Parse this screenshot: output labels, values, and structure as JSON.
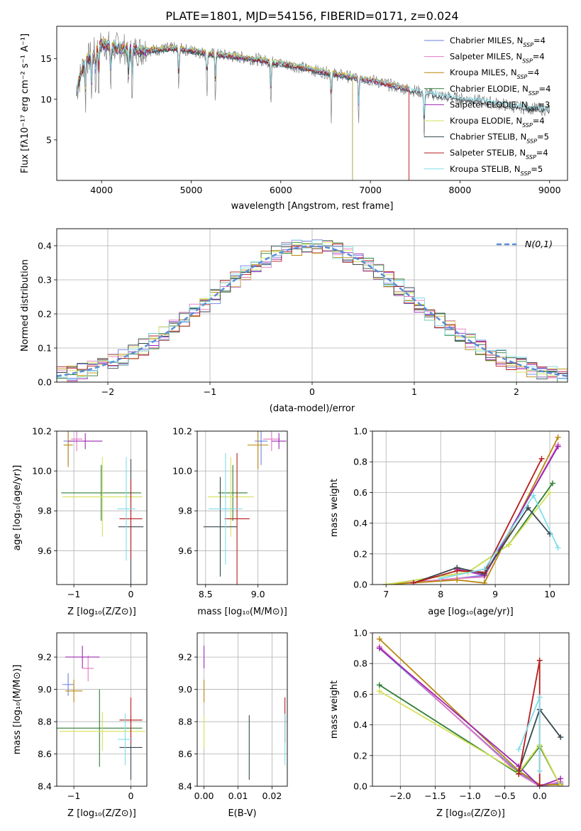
{
  "figure_title": "PLATE=1801, MJD=54156, FIBERID=0171, z=0.024",
  "colors": {
    "Chabrier MILES": "#6a7fe0",
    "Salpeter MILES": "#e377c2",
    "Kroupa MILES": "#b8860b",
    "Chabrier ELODIE": "#2e7d32",
    "Salpeter ELODIE": "#9c27b0",
    "Kroupa ELODIE": "#d4e157",
    "Chabrier STELIB": "#37474f",
    "Salpeter STELIB": "#b71c1c",
    "Kroupa STELIB": "#80deea",
    "data": "#808080",
    "gauss": "#5b8dd9",
    "orange": "#e8702a",
    "grid": "#b0b0b0"
  },
  "chart_data": [
    {
      "type": "line",
      "id": "spectrum",
      "xlabel": "wavelength [Angstrom, rest frame]",
      "ylabel": "Flux [f_λ 10^-17 erg cm^-2 s^-1 A^-1]",
      "xlim": [
        3500,
        9200
      ],
      "ylim": [
        0,
        19
      ],
      "xticks": [
        4000,
        5000,
        6000,
        7000,
        8000,
        9000
      ],
      "yticks": [
        5,
        10,
        15
      ],
      "grid": false,
      "legend_position": "top-right",
      "legend": [
        "Chabrier MILES, N_SSP=4",
        "Salpeter MILES, N_SSP=4",
        "Kroupa MILES, N_SSP=4",
        "Chabrier ELODIE, N_SSP=4",
        "Salpeter ELODIE, N_SSP=3",
        "Kroupa ELODIE, N_SSP=4",
        "Chabrier STELIB, N_SSP=5",
        "Salpeter STELIB, N_SSP=4",
        "Kroupa STELIB, N_SSP=5"
      ],
      "continuum": {
        "x": [
          3720,
          3800,
          3900,
          4000,
          4100,
          4200,
          4400,
          4600,
          4800,
          5000,
          5200,
          5400,
          5600,
          5800,
          6000,
          6200,
          6400,
          6600,
          6800,
          7000,
          7200,
          7400,
          7600,
          7800,
          8000,
          8200,
          8400,
          8600,
          8800,
          9000
        ],
        "y": [
          11,
          14.5,
          15.5,
          16.8,
          16.5,
          16.3,
          16.0,
          16.1,
          16.3,
          16.0,
          15.6,
          15.4,
          15.1,
          14.8,
          14.4,
          14.0,
          13.5,
          13.1,
          12.7,
          12.4,
          11.8,
          11.3,
          10.8,
          10.4,
          10.1,
          9.8,
          9.5,
          9.1,
          8.9,
          8.7
        ]
      }
    },
    {
      "type": "histogram",
      "id": "residuals",
      "xlabel": "(data-model)/error",
      "ylabel": "Normed distribution",
      "xlim": [
        -2.5,
        2.5
      ],
      "ylim": [
        0,
        0.45
      ],
      "xticks": [
        -2,
        -1,
        0,
        1,
        2
      ],
      "yticks": [
        0.0,
        0.1,
        0.2,
        0.3,
        0.4
      ],
      "grid": true,
      "legend": "N(0,1)",
      "legend_position": "top-right",
      "gaussian": {
        "mean": 0,
        "sigma": 1
      }
    },
    {
      "type": "scatter",
      "id": "age_vs_Z",
      "xlabel": "Z [log10(Z/Z⊙)]",
      "ylabel": "age [log10(age/yr)]",
      "xlim": [
        -1.3,
        0.28
      ],
      "ylim": [
        9.43,
        10.2
      ],
      "xticks": [
        -1,
        0
      ],
      "yticks": [
        9.6,
        9.8,
        10.0,
        10.2
      ],
      "grid": true,
      "points": [
        {
          "model": "Chabrier MILES",
          "x": -1.1,
          "y": 10.15,
          "xerr": 0.08,
          "yerr": 0.12
        },
        {
          "model": "Salpeter MILES",
          "x": -0.95,
          "y": 10.16,
          "xerr": 0.1,
          "yerr": 0.06
        },
        {
          "model": "Kroupa MILES",
          "x": -1.1,
          "y": 10.13,
          "xerr": 0.08,
          "yerr": 0.11
        },
        {
          "model": "Chabrier ELODIE",
          "x": -0.52,
          "y": 9.89,
          "xerr": 0.7,
          "yerr": 0.14
        },
        {
          "model": "Salpeter ELODIE",
          "x": -0.8,
          "y": 10.15,
          "xerr": 0.3,
          "yerr": 0.04
        },
        {
          "model": "Kroupa ELODIE",
          "x": -0.5,
          "y": 9.87,
          "xerr": 0.7,
          "yerr": 0.2
        },
        {
          "model": "Chabrier STELIB",
          "x": 0.0,
          "y": 9.72,
          "xerr": 0.22,
          "yerr": 0.34
        },
        {
          "model": "Salpeter STELIB",
          "x": 0.0,
          "y": 9.76,
          "xerr": 0.2,
          "yerr": 0.2
        },
        {
          "model": "Kroupa STELIB",
          "x": -0.08,
          "y": 9.81,
          "xerr": 0.16,
          "yerr": 0.26
        }
      ]
    },
    {
      "type": "scatter",
      "id": "age_vs_mass",
      "xlabel": "mass [log10(M/M⊙)]",
      "ylabel": "",
      "xlim": [
        8.42,
        9.28
      ],
      "ylim": [
        9.43,
        10.2
      ],
      "xticks": [
        8.5,
        9.0
      ],
      "yticks": [
        9.6,
        9.8,
        10.0,
        10.2
      ],
      "grid": true,
      "points": [
        {
          "model": "Chabrier MILES",
          "x": 9.03,
          "y": 10.15,
          "xerr": 0.06,
          "yerr": 0.12
        },
        {
          "model": "Salpeter MILES",
          "x": 9.13,
          "y": 10.16,
          "xerr": 0.08,
          "yerr": 0.06
        },
        {
          "model": "Kroupa MILES",
          "x": 9.0,
          "y": 10.13,
          "xerr": 0.1,
          "yerr": 0.12
        },
        {
          "model": "Chabrier ELODIE",
          "x": 8.76,
          "y": 9.89,
          "xerr": 0.14,
          "yerr": 0.14
        },
        {
          "model": "Salpeter ELODIE",
          "x": 9.2,
          "y": 10.15,
          "xerr": 0.07,
          "yerr": 0.04
        },
        {
          "model": "Kroupa ELODIE",
          "x": 8.74,
          "y": 9.87,
          "xerr": 0.22,
          "yerr": 0.2
        },
        {
          "model": "Chabrier STELIB",
          "x": 8.64,
          "y": 9.72,
          "xerr": 0.16,
          "yerr": 0.25
        },
        {
          "model": "Salpeter STELIB",
          "x": 8.8,
          "y": 9.76,
          "xerr": 0.12,
          "yerr": 0.33
        },
        {
          "model": "Kroupa STELIB",
          "x": 8.69,
          "y": 9.81,
          "xerr": 0.16,
          "yerr": 0.28
        }
      ]
    },
    {
      "type": "line",
      "id": "massweight_vs_age",
      "xlabel": "age [log10(age/yr)]",
      "ylabel": "mass weight",
      "xlim": [
        6.75,
        10.35
      ],
      "ylim": [
        0,
        1
      ],
      "xticks": [
        7,
        8,
        9,
        10
      ],
      "yticks": [
        0.0,
        0.2,
        0.4,
        0.6,
        0.8,
        1.0
      ],
      "grid": true,
      "series": [
        {
          "model": "Chabrier MILES",
          "x": [
            7.0,
            8.3,
            8.8,
            10.15
          ],
          "y": [
            0.0,
            0.04,
            0.06,
            0.9
          ]
        },
        {
          "model": "Salpeter MILES",
          "x": [
            7.0,
            8.3,
            8.8,
            10.15
          ],
          "y": [
            0.0,
            0.04,
            0.05,
            0.91
          ]
        },
        {
          "model": "Kroupa MILES",
          "x": [
            7.0,
            8.3,
            8.8,
            10.15
          ],
          "y": [
            0.0,
            0.03,
            0.01,
            0.96
          ]
        },
        {
          "model": "Chabrier ELODIE",
          "x": [
            7.0,
            8.5,
            9.25,
            10.05
          ],
          "y": [
            0.0,
            0.08,
            0.26,
            0.66
          ]
        },
        {
          "model": "Salpeter ELODIE",
          "x": [
            8.3,
            8.8,
            10.15
          ],
          "y": [
            0.1,
            0.06,
            0.9
          ]
        },
        {
          "model": "Kroupa ELODIE",
          "x": [
            7.0,
            8.5,
            9.25,
            10.0
          ],
          "y": [
            0.0,
            0.08,
            0.26,
            0.6
          ]
        },
        {
          "model": "Chabrier STELIB",
          "x": [
            7.5,
            8.3,
            8.8,
            9.6,
            10.0
          ],
          "y": [
            0.01,
            0.11,
            0.07,
            0.5,
            0.33
          ]
        },
        {
          "model": "Salpeter STELIB",
          "x": [
            7.5,
            8.3,
            8.8,
            9.85
          ],
          "y": [
            0.01,
            0.09,
            0.08,
            0.82
          ]
        },
        {
          "model": "Kroupa STELIB",
          "x": [
            8.0,
            8.8,
            9.7,
            10.15
          ],
          "y": [
            0.04,
            0.1,
            0.58,
            0.24
          ]
        }
      ]
    },
    {
      "type": "scatter",
      "id": "mass_vs_Z",
      "xlabel": "Z [log10(Z/Z⊙)]",
      "ylabel": "mass [log10(M/M⊙)]",
      "xlim": [
        -1.3,
        0.28
      ],
      "ylim": [
        8.4,
        9.35
      ],
      "xticks": [
        -1,
        0
      ],
      "yticks": [
        8.4,
        8.6,
        8.8,
        9.0,
        9.2
      ],
      "grid": true,
      "points": [
        {
          "model": "Chabrier MILES",
          "x": -1.1,
          "y": 9.03,
          "xerr": 0.1,
          "yerr": 0.07
        },
        {
          "model": "Salpeter MILES",
          "x": -0.75,
          "y": 9.13,
          "xerr": 0.1,
          "yerr": 0.08
        },
        {
          "model": "Kroupa MILES",
          "x": -1.0,
          "y": 8.99,
          "xerr": 0.15,
          "yerr": 0.07
        },
        {
          "model": "Chabrier ELODIE",
          "x": -0.55,
          "y": 8.76,
          "xerr": 0.75,
          "yerr": 0.24
        },
        {
          "model": "Salpeter ELODIE",
          "x": -0.85,
          "y": 9.2,
          "xerr": 0.3,
          "yerr": 0.07
        },
        {
          "model": "Kroupa ELODIE",
          "x": -0.5,
          "y": 8.74,
          "xerr": 0.75,
          "yerr": 0.12
        },
        {
          "model": "Chabrier STELIB",
          "x": 0.0,
          "y": 8.64,
          "xerr": 0.2,
          "yerr": 0.2
        },
        {
          "model": "Salpeter STELIB",
          "x": 0.0,
          "y": 8.81,
          "xerr": 0.2,
          "yerr": 0.14
        },
        {
          "model": "Kroupa STELIB",
          "x": -0.1,
          "y": 8.69,
          "xerr": 0.13,
          "yerr": 0.16
        }
      ]
    },
    {
      "type": "scatter",
      "id": "mass_vs_ebv",
      "xlabel": "E(B-V)",
      "ylabel": "",
      "xlim": [
        -0.002,
        0.0245
      ],
      "ylim": [
        8.4,
        9.35
      ],
      "xticks": [
        0.0,
        0.01,
        0.02
      ],
      "yticks": [
        8.4,
        8.6,
        8.8,
        9.0,
        9.2
      ],
      "grid": true,
      "points": [
        {
          "model": "Salpeter ELODIE",
          "x": 0.0,
          "y": 9.2,
          "yerr": 0.07
        },
        {
          "model": "Kroupa MILES",
          "x": 0.0,
          "y": 8.99,
          "yerr": 0.07
        },
        {
          "model": "Kroupa ELODIE",
          "x": 0.0,
          "y": 8.74,
          "yerr": 0.1
        },
        {
          "model": "Chabrier STELIB",
          "x": 0.0133,
          "y": 8.64,
          "yerr": 0.2
        },
        {
          "model": "Salpeter STELIB",
          "x": 0.0238,
          "y": 8.81,
          "yerr": 0.14
        },
        {
          "model": "Kroupa STELIB",
          "x": 0.0238,
          "y": 8.69,
          "yerr": 0.16
        }
      ]
    },
    {
      "type": "line",
      "id": "massweight_vs_Z",
      "xlabel": "Z [log10(Z/Z⊙)]",
      "ylabel": "mass weight",
      "xlim": [
        -2.4,
        0.42
      ],
      "ylim": [
        0,
        1
      ],
      "xticks": [
        -2.0,
        -1.5,
        -1.0,
        -0.5,
        0.0
      ],
      "yticks": [
        0.0,
        0.2,
        0.4,
        0.6,
        0.8,
        1.0
      ],
      "grid": true,
      "series": [
        {
          "model": "Chabrier MILES",
          "x": [
            -2.3,
            -0.3,
            0.0,
            0.3
          ],
          "y": [
            0.9,
            0.09,
            0.0,
            0.02
          ]
        },
        {
          "model": "Salpeter MILES",
          "x": [
            -2.3,
            -0.3,
            0.0,
            0.3
          ],
          "y": [
            0.91,
            0.08,
            0.0,
            0.03
          ]
        },
        {
          "model": "Kroupa MILES",
          "x": [
            -2.3,
            -0.3,
            0.0,
            0.3
          ],
          "y": [
            0.96,
            0.1,
            0.01,
            0.01
          ]
        },
        {
          "model": "Chabrier ELODIE",
          "x": [
            -2.3,
            -0.3,
            0.0,
            0.3
          ],
          "y": [
            0.66,
            0.08,
            0.26,
            0.0
          ]
        },
        {
          "model": "Salpeter ELODIE",
          "x": [
            -2.3,
            -0.3,
            0.0,
            0.3
          ],
          "y": [
            0.9,
            0.13,
            0.0,
            0.05
          ]
        },
        {
          "model": "Kroupa ELODIE",
          "x": [
            -2.3,
            -0.3,
            0.0,
            0.3
          ],
          "y": [
            0.62,
            0.09,
            0.27,
            0.0
          ]
        },
        {
          "model": "Chabrier STELIB",
          "x": [
            -0.3,
            0.0,
            0.3
          ],
          "y": [
            0.1,
            0.5,
            0.32
          ]
        },
        {
          "model": "Salpeter STELIB",
          "x": [
            -0.3,
            0.0,
            0.0
          ],
          "y": [
            0.08,
            0.82,
            0.0
          ]
        },
        {
          "model": "Kroupa STELIB",
          "x": [
            -0.3,
            0.0,
            0.0
          ],
          "y": [
            0.24,
            0.58,
            0.1
          ]
        }
      ]
    }
  ]
}
